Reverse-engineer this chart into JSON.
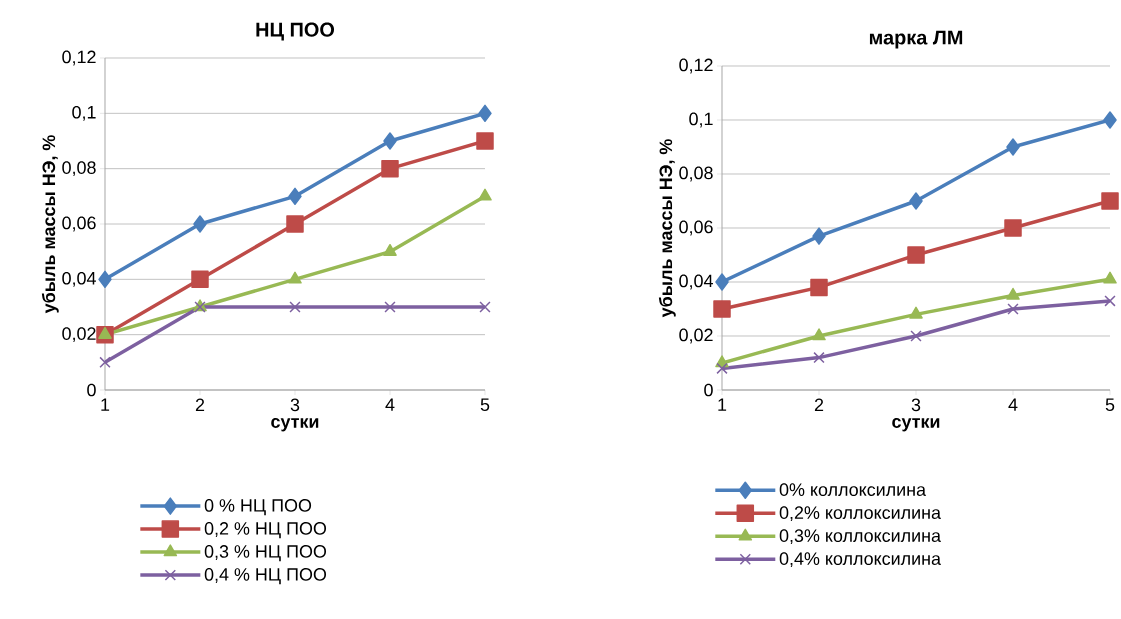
{
  "chart_data": [
    {
      "type": "line",
      "title": "НЦ ПОО",
      "xlabel": "сутки",
      "ylabel": "убыль массы НЭ, %",
      "x": [
        1,
        2,
        3,
        4,
        5
      ],
      "xlim": [
        1,
        5
      ],
      "xticks": [
        1,
        2,
        3,
        4,
        5
      ],
      "ylim": [
        0,
        0.12
      ],
      "yticks": [
        {
          "value": 0,
          "label": "0"
        },
        {
          "value": 0.02,
          "label": "0,02"
        },
        {
          "value": 0.04,
          "label": "0,04"
        },
        {
          "value": 0.06,
          "label": "0,06"
        },
        {
          "value": 0.08,
          "label": "0,08"
        },
        {
          "value": 0.1,
          "label": "0,1"
        },
        {
          "value": 0.12,
          "label": "0,12"
        }
      ],
      "grid": "y",
      "legend": "bottom",
      "line_style": "solid",
      "series": [
        {
          "name": "0 % НЦ ПОО",
          "color": "#4a7ebb",
          "marker": "diamond",
          "values": [
            0.04,
            0.06,
            0.07,
            0.09,
            0.1
          ]
        },
        {
          "name": "0,2 % НЦ ПОО",
          "color": "#be4b48",
          "marker": "square",
          "values": [
            0.02,
            0.04,
            0.06,
            0.08,
            0.09
          ]
        },
        {
          "name": "0,3 % НЦ ПОО",
          "color": "#98b954",
          "marker": "triangle",
          "values": [
            0.02,
            0.03,
            0.04,
            0.05,
            0.07
          ]
        },
        {
          "name": "0,4 % НЦ ПОО",
          "color": "#7d60a0",
          "marker": "cross",
          "values": [
            0.01,
            0.03,
            0.03,
            0.03,
            0.03
          ]
        }
      ]
    },
    {
      "type": "line",
      "title": "марка ЛМ",
      "xlabel": "сутки",
      "ylabel": "убыль массы НЭ, %",
      "x": [
        1,
        2,
        3,
        4,
        5
      ],
      "xlim": [
        1,
        5
      ],
      "xticks": [
        1,
        2,
        3,
        4,
        5
      ],
      "ylim": [
        0,
        0.12
      ],
      "yticks": [
        {
          "value": 0,
          "label": "0"
        },
        {
          "value": 0.02,
          "label": "0,02"
        },
        {
          "value": 0.04,
          "label": "0,04"
        },
        {
          "value": 0.06,
          "label": "0,06"
        },
        {
          "value": 0.08,
          "label": "0,08"
        },
        {
          "value": 0.1,
          "label": "0,1"
        },
        {
          "value": 0.12,
          "label": "0,12"
        }
      ],
      "grid": "y",
      "legend": "bottom",
      "line_style": "solid",
      "series": [
        {
          "name": "0% коллоксилина",
          "color": "#4a7ebb",
          "marker": "diamond",
          "values": [
            0.04,
            0.057,
            0.07,
            0.09,
            0.1
          ]
        },
        {
          "name": "0,2% коллоксилина",
          "color": "#be4b48",
          "marker": "square",
          "values": [
            0.03,
            0.038,
            0.05,
            0.06,
            0.07
          ]
        },
        {
          "name": "0,3% коллоксилина",
          "color": "#98b954",
          "marker": "triangle",
          "values": [
            0.01,
            0.02,
            0.028,
            0.035,
            0.041
          ]
        },
        {
          "name": "0,4% коллоксилина",
          "color": "#7d60a0",
          "marker": "cross",
          "values": [
            0.008,
            0.012,
            0.02,
            0.03,
            0.033
          ]
        }
      ]
    }
  ]
}
